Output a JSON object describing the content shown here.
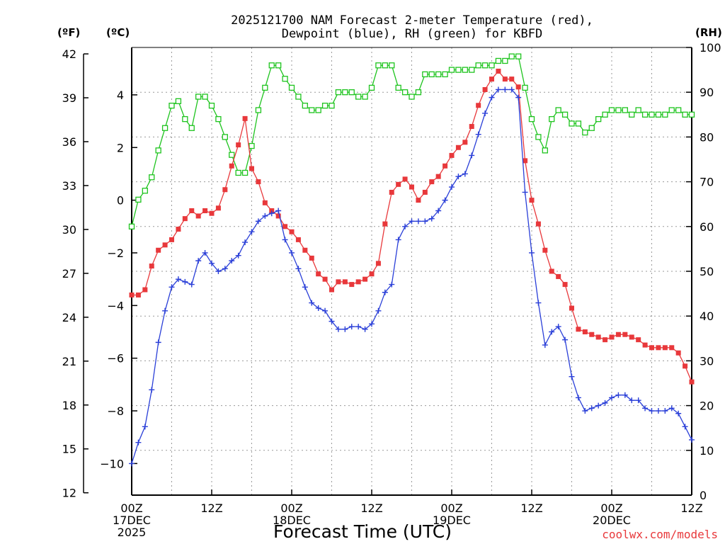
{
  "chart_data": {
    "type": "line",
    "title_lines": [
      "2025121700 NAM Forecast 2-meter Temperature (red),",
      "Dewpoint (blue), RH (green) for KBFD"
    ],
    "xlabel": "Forecast Time (UTC)",
    "credit": "coolwx.com/models",
    "units": {
      "fahrenheit": "(ºF)",
      "celsius": "(ºC)",
      "rh": "(RH)"
    },
    "x_hours_range": [
      0,
      84
    ],
    "celsius_range": [
      -11.2,
      5.8
    ],
    "rh_range": [
      0,
      100
    ],
    "fahrenheit_ticks": [
      "12",
      "15",
      "18",
      "21",
      "24",
      "27",
      "30",
      "33",
      "36",
      "39",
      "42"
    ],
    "celsius_ticks": [
      "-10",
      "-8",
      "-6",
      "-4",
      "-2",
      "0",
      "2",
      "4"
    ],
    "rh_ticks": [
      "0",
      "10",
      "20",
      "30",
      "40",
      "50",
      "60",
      "70",
      "80",
      "90",
      "100"
    ],
    "x_ticks": [
      {
        "hour": 0,
        "lines": [
          "00Z",
          "17DEC",
          "2025"
        ]
      },
      {
        "hour": 12,
        "lines": [
          "12Z"
        ]
      },
      {
        "hour": 24,
        "lines": [
          "00Z",
          "18DEC"
        ]
      },
      {
        "hour": 36,
        "lines": [
          "12Z"
        ]
      },
      {
        "hour": 48,
        "lines": [
          "00Z",
          "19DEC"
        ]
      },
      {
        "hour": 60,
        "lines": [
          "12Z"
        ]
      },
      {
        "hour": 72,
        "lines": [
          "00Z",
          "20DEC"
        ]
      },
      {
        "hour": 84,
        "lines": [
          "12Z"
        ]
      }
    ],
    "grid": true,
    "colors": {
      "temperature": "#e8383b",
      "dewpoint": "#2a3fd8",
      "rh": "#1ec41e",
      "credit": "#e8383b"
    },
    "series": [
      {
        "key": "temperature",
        "unit": "celsius",
        "marker": "filled-square",
        "values": [
          -3.6,
          -3.6,
          -3.4,
          -2.5,
          -1.9,
          -1.7,
          -1.5,
          -1.1,
          -0.7,
          -0.4,
          -0.6,
          -0.4,
          -0.5,
          -0.3,
          0.4,
          1.3,
          2.1,
          3.1,
          1.2,
          0.7,
          -0.1,
          -0.4,
          -0.6,
          -1.0,
          -1.2,
          -1.5,
          -1.9,
          -2.2,
          -2.8,
          -3.0,
          -3.4,
          -3.1,
          -3.1,
          -3.2,
          -3.1,
          -3.0,
          -2.8,
          -2.4,
          -0.9,
          0.3,
          0.6,
          0.8,
          0.5,
          0.0,
          0.3,
          0.7,
          0.9,
          1.3,
          1.7,
          2.0,
          2.2,
          2.8,
          3.6,
          4.2,
          4.6,
          4.9,
          4.6,
          4.6,
          4.3,
          1.5,
          0.0,
          -0.9,
          -1.9,
          -2.7,
          -2.9,
          -3.2,
          -4.1,
          -4.9,
          -5.0,
          -5.1,
          -5.2,
          -5.3,
          -5.2,
          -5.1,
          -5.1,
          -5.2,
          -5.3,
          -5.5,
          -5.6,
          -5.6,
          -5.6,
          -5.6,
          -5.8,
          -6.3,
          -6.9
        ]
      },
      {
        "key": "dewpoint",
        "unit": "celsius",
        "marker": "plus",
        "values": [
          -10.0,
          -9.2,
          -8.6,
          -7.2,
          -5.4,
          -4.2,
          -3.3,
          -3.0,
          -3.1,
          -3.2,
          -2.3,
          -2.0,
          -2.4,
          -2.7,
          -2.6,
          -2.3,
          -2.1,
          -1.6,
          -1.2,
          -0.8,
          -0.6,
          -0.5,
          -0.4,
          -1.5,
          -2.0,
          -2.6,
          -3.3,
          -3.9,
          -4.1,
          -4.2,
          -4.6,
          -4.9,
          -4.9,
          -4.8,
          -4.8,
          -4.9,
          -4.7,
          -4.2,
          -3.5,
          -3.2,
          -1.5,
          -1.0,
          -0.8,
          -0.8,
          -0.8,
          -0.7,
          -0.4,
          0.0,
          0.5,
          0.9,
          1.0,
          1.7,
          2.5,
          3.3,
          3.9,
          4.2,
          4.2,
          4.2,
          3.9,
          0.3,
          -2.0,
          -3.9,
          -5.5,
          -5.0,
          -4.8,
          -5.3,
          -6.7,
          -7.5,
          -8.0,
          -7.9,
          -7.8,
          -7.7,
          -7.5,
          -7.4,
          -7.4,
          -7.6,
          -7.6,
          -7.9,
          -8.0,
          -8.0,
          -8.0,
          -7.9,
          -8.1,
          -8.6,
          -9.1
        ]
      },
      {
        "key": "rh",
        "unit": "rh",
        "marker": "open-square",
        "values": [
          60,
          66,
          68,
          71,
          77,
          82,
          87,
          88,
          84,
          82,
          89,
          89,
          87,
          84,
          80,
          76,
          72,
          72,
          78,
          86,
          91,
          96,
          96,
          93,
          91,
          89,
          87,
          86,
          86,
          87,
          87,
          90,
          90,
          90,
          89,
          89,
          91,
          96,
          96,
          96,
          91,
          90,
          89,
          90,
          94,
          94,
          94,
          94,
          95,
          95,
          95,
          95,
          96,
          96,
          96,
          97,
          97,
          98,
          98,
          91,
          84,
          80,
          77,
          84,
          86,
          85,
          83,
          83,
          81,
          82,
          84,
          85,
          86,
          86,
          86,
          85,
          86,
          85,
          85,
          85,
          85,
          86,
          86,
          85,
          85
        ]
      }
    ]
  }
}
